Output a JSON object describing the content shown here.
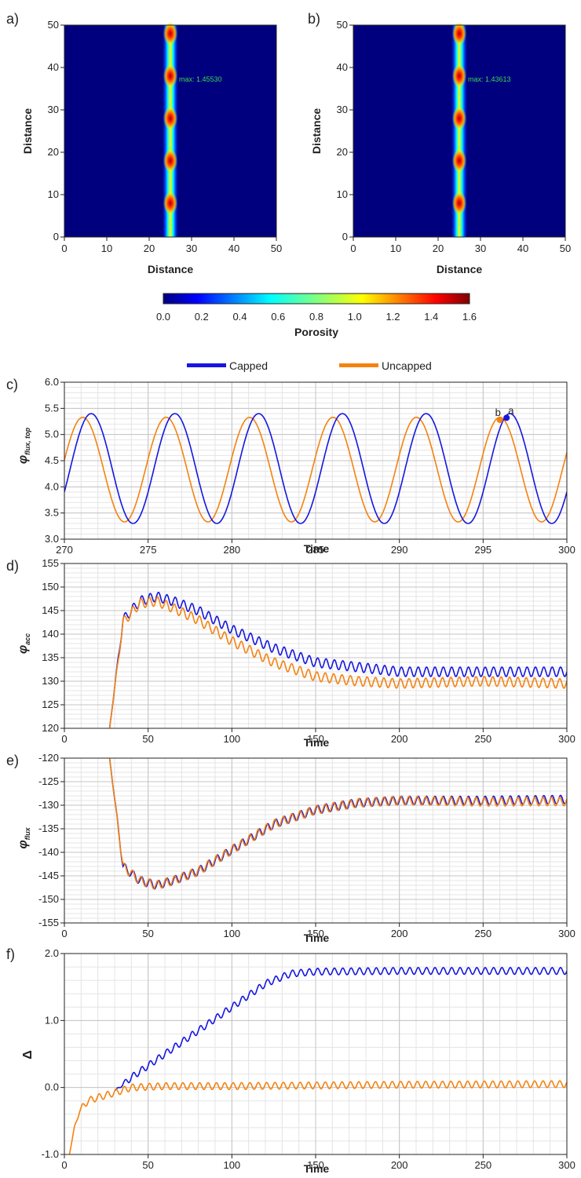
{
  "colors": {
    "capped": "#1616e0",
    "uncapped": "#f5820f",
    "grid": "#d8d8d8",
    "field_bg": "#00007f"
  },
  "legend": [
    {
      "label": "Capped",
      "color": "#1616e0"
    },
    {
      "label": "Uncapped",
      "color": "#f5820f"
    }
  ],
  "colorbar": {
    "label": "Porosity",
    "ticks": [
      "0.0",
      "0.2",
      "0.4",
      "0.6",
      "0.8",
      "1.0",
      "1.2",
      "1.4",
      "1.6"
    ],
    "range": [
      0,
      1.6
    ],
    "colormap": "jet"
  },
  "chart_data": [
    {
      "type": "heatmap",
      "panel": "a)",
      "xlabel": "Distance",
      "ylabel": "Distance",
      "xlim": [
        0,
        50
      ],
      "ylim": [
        0,
        50
      ],
      "xticks": [
        "0",
        "10",
        "20",
        "30",
        "40",
        "50"
      ],
      "yticks": [
        "0",
        "10",
        "20",
        "30",
        "40",
        "50"
      ],
      "annotation": "max: 1.45530",
      "channel_x": 25,
      "peaks_y": [
        8,
        18,
        28,
        38,
        48
      ],
      "max_value": 1.4553
    },
    {
      "type": "heatmap",
      "panel": "b)",
      "xlabel": "Distance",
      "ylabel": "Distance",
      "xlim": [
        0,
        50
      ],
      "ylim": [
        0,
        50
      ],
      "xticks": [
        "0",
        "10",
        "20",
        "30",
        "40",
        "50"
      ],
      "yticks": [
        "0",
        "10",
        "20",
        "30",
        "40",
        "50"
      ],
      "annotation": "max: 1.43613",
      "channel_x": 25,
      "peaks_y": [
        8,
        18,
        28,
        38,
        48
      ],
      "max_value": 1.43613
    },
    {
      "type": "line",
      "panel": "c)",
      "xlabel": "Time",
      "ylabel": "φ",
      "ylabel_sub": "flux, top",
      "xlim": [
        270,
        300
      ],
      "ylim": [
        3.0,
        6.0
      ],
      "xticks": [
        "270",
        "275",
        "280",
        "285",
        "290",
        "295",
        "300"
      ],
      "yticks": [
        "3.0",
        "3.5",
        "4.0",
        "4.5",
        "5.0",
        "5.5",
        "6.0"
      ],
      "series": [
        {
          "name": "Capped",
          "period": 5.0,
          "mean": 4.35,
          "amp": 1.05,
          "peak_t": 271.6
        },
        {
          "name": "Uncapped",
          "period": 4.98,
          "mean": 4.33,
          "amp": 1.0,
          "peak_t": 271.1
        }
      ],
      "markers": [
        {
          "label": "a",
          "x": 296.4,
          "y": 5.32,
          "series": "Capped"
        },
        {
          "label": "b",
          "x": 296.0,
          "y": 5.28,
          "series": "Uncapped"
        }
      ]
    },
    {
      "type": "line",
      "panel": "d)",
      "xlabel": "Time",
      "ylabel": "φ",
      "ylabel_sub": "acc",
      "xlim": [
        0,
        300
      ],
      "ylim": [
        120,
        155
      ],
      "xticks": [
        "0",
        "50",
        "100",
        "150",
        "200",
        "250",
        "300"
      ],
      "yticks": [
        "120",
        "125",
        "130",
        "135",
        "140",
        "145",
        "150",
        "155"
      ],
      "series": [
        {
          "name": "Capped",
          "t": [
            27,
            35,
            45,
            55,
            65,
            80,
            100,
            125,
            150,
            175,
            200,
            250,
            300
          ],
          "v": [
            120,
            143,
            147,
            148,
            147,
            145,
            141,
            137,
            134,
            133,
            132,
            132,
            132
          ],
          "osc_amp": 1.0
        },
        {
          "name": "Uncapped",
          "t": [
            27,
            35,
            45,
            55,
            65,
            80,
            100,
            125,
            150,
            175,
            200,
            250,
            300
          ],
          "v": [
            120,
            142.5,
            146.5,
            147,
            145.5,
            143,
            138.5,
            134,
            131,
            130,
            129.5,
            130,
            129.5
          ],
          "osc_amp": 1.0
        }
      ]
    },
    {
      "type": "line",
      "panel": "e)",
      "xlabel": "Time",
      "ylabel": "φ",
      "ylabel_sub": "flux",
      "xlim": [
        0,
        300
      ],
      "ylim": [
        -155,
        -120
      ],
      "xticks": [
        "0",
        "50",
        "100",
        "150",
        "200",
        "250",
        "300"
      ],
      "yticks": [
        "-155",
        "-150",
        "-145",
        "-140",
        "-135",
        "-130",
        "-125",
        "-120"
      ],
      "series": [
        {
          "name": "Capped",
          "t": [
            27,
            35,
            45,
            55,
            65,
            80,
            100,
            125,
            150,
            175,
            200,
            250,
            300
          ],
          "v": [
            -120,
            -143,
            -146,
            -147,
            -146,
            -144,
            -139.5,
            -134,
            -131,
            -129.5,
            -129,
            -129,
            -128.8
          ],
          "osc_amp": 0.9
        },
        {
          "name": "Uncapped",
          "t": [
            27,
            35,
            45,
            55,
            65,
            80,
            100,
            125,
            150,
            175,
            200,
            250,
            300
          ],
          "v": [
            -120,
            -143,
            -146,
            -147,
            -146,
            -144,
            -139.5,
            -134,
            -131,
            -129.5,
            -129,
            -129.3,
            -129.2
          ],
          "osc_amp": 0.9
        }
      ]
    },
    {
      "type": "line",
      "panel": "f)",
      "xlabel": "Time",
      "ylabel": "Δ",
      "xlim": [
        0,
        300
      ],
      "ylim": [
        -1.0,
        2.0
      ],
      "xticks": [
        "0",
        "50",
        "100",
        "150",
        "200",
        "250",
        "300"
      ],
      "yticks": [
        "-1.0",
        "0.0",
        "1.0",
        "2.0"
      ],
      "series": [
        {
          "name": "Capped",
          "t": [
            30,
            40,
            60,
            80,
            100,
            120,
            135,
            150,
            200,
            300
          ],
          "v": [
            -0.05,
            0.15,
            0.5,
            0.85,
            1.2,
            1.55,
            1.7,
            1.73,
            1.74,
            1.74
          ],
          "osc_amp": 0.05
        },
        {
          "name": "Uncapped",
          "t": [
            3,
            6,
            9,
            14,
            20,
            30,
            40,
            60,
            100,
            150,
            200,
            300
          ],
          "v": [
            -1.0,
            -0.6,
            -0.35,
            -0.2,
            -0.15,
            -0.08,
            0.0,
            0.02,
            0.02,
            0.03,
            0.04,
            0.05
          ],
          "osc_amp": 0.05
        }
      ]
    }
  ]
}
